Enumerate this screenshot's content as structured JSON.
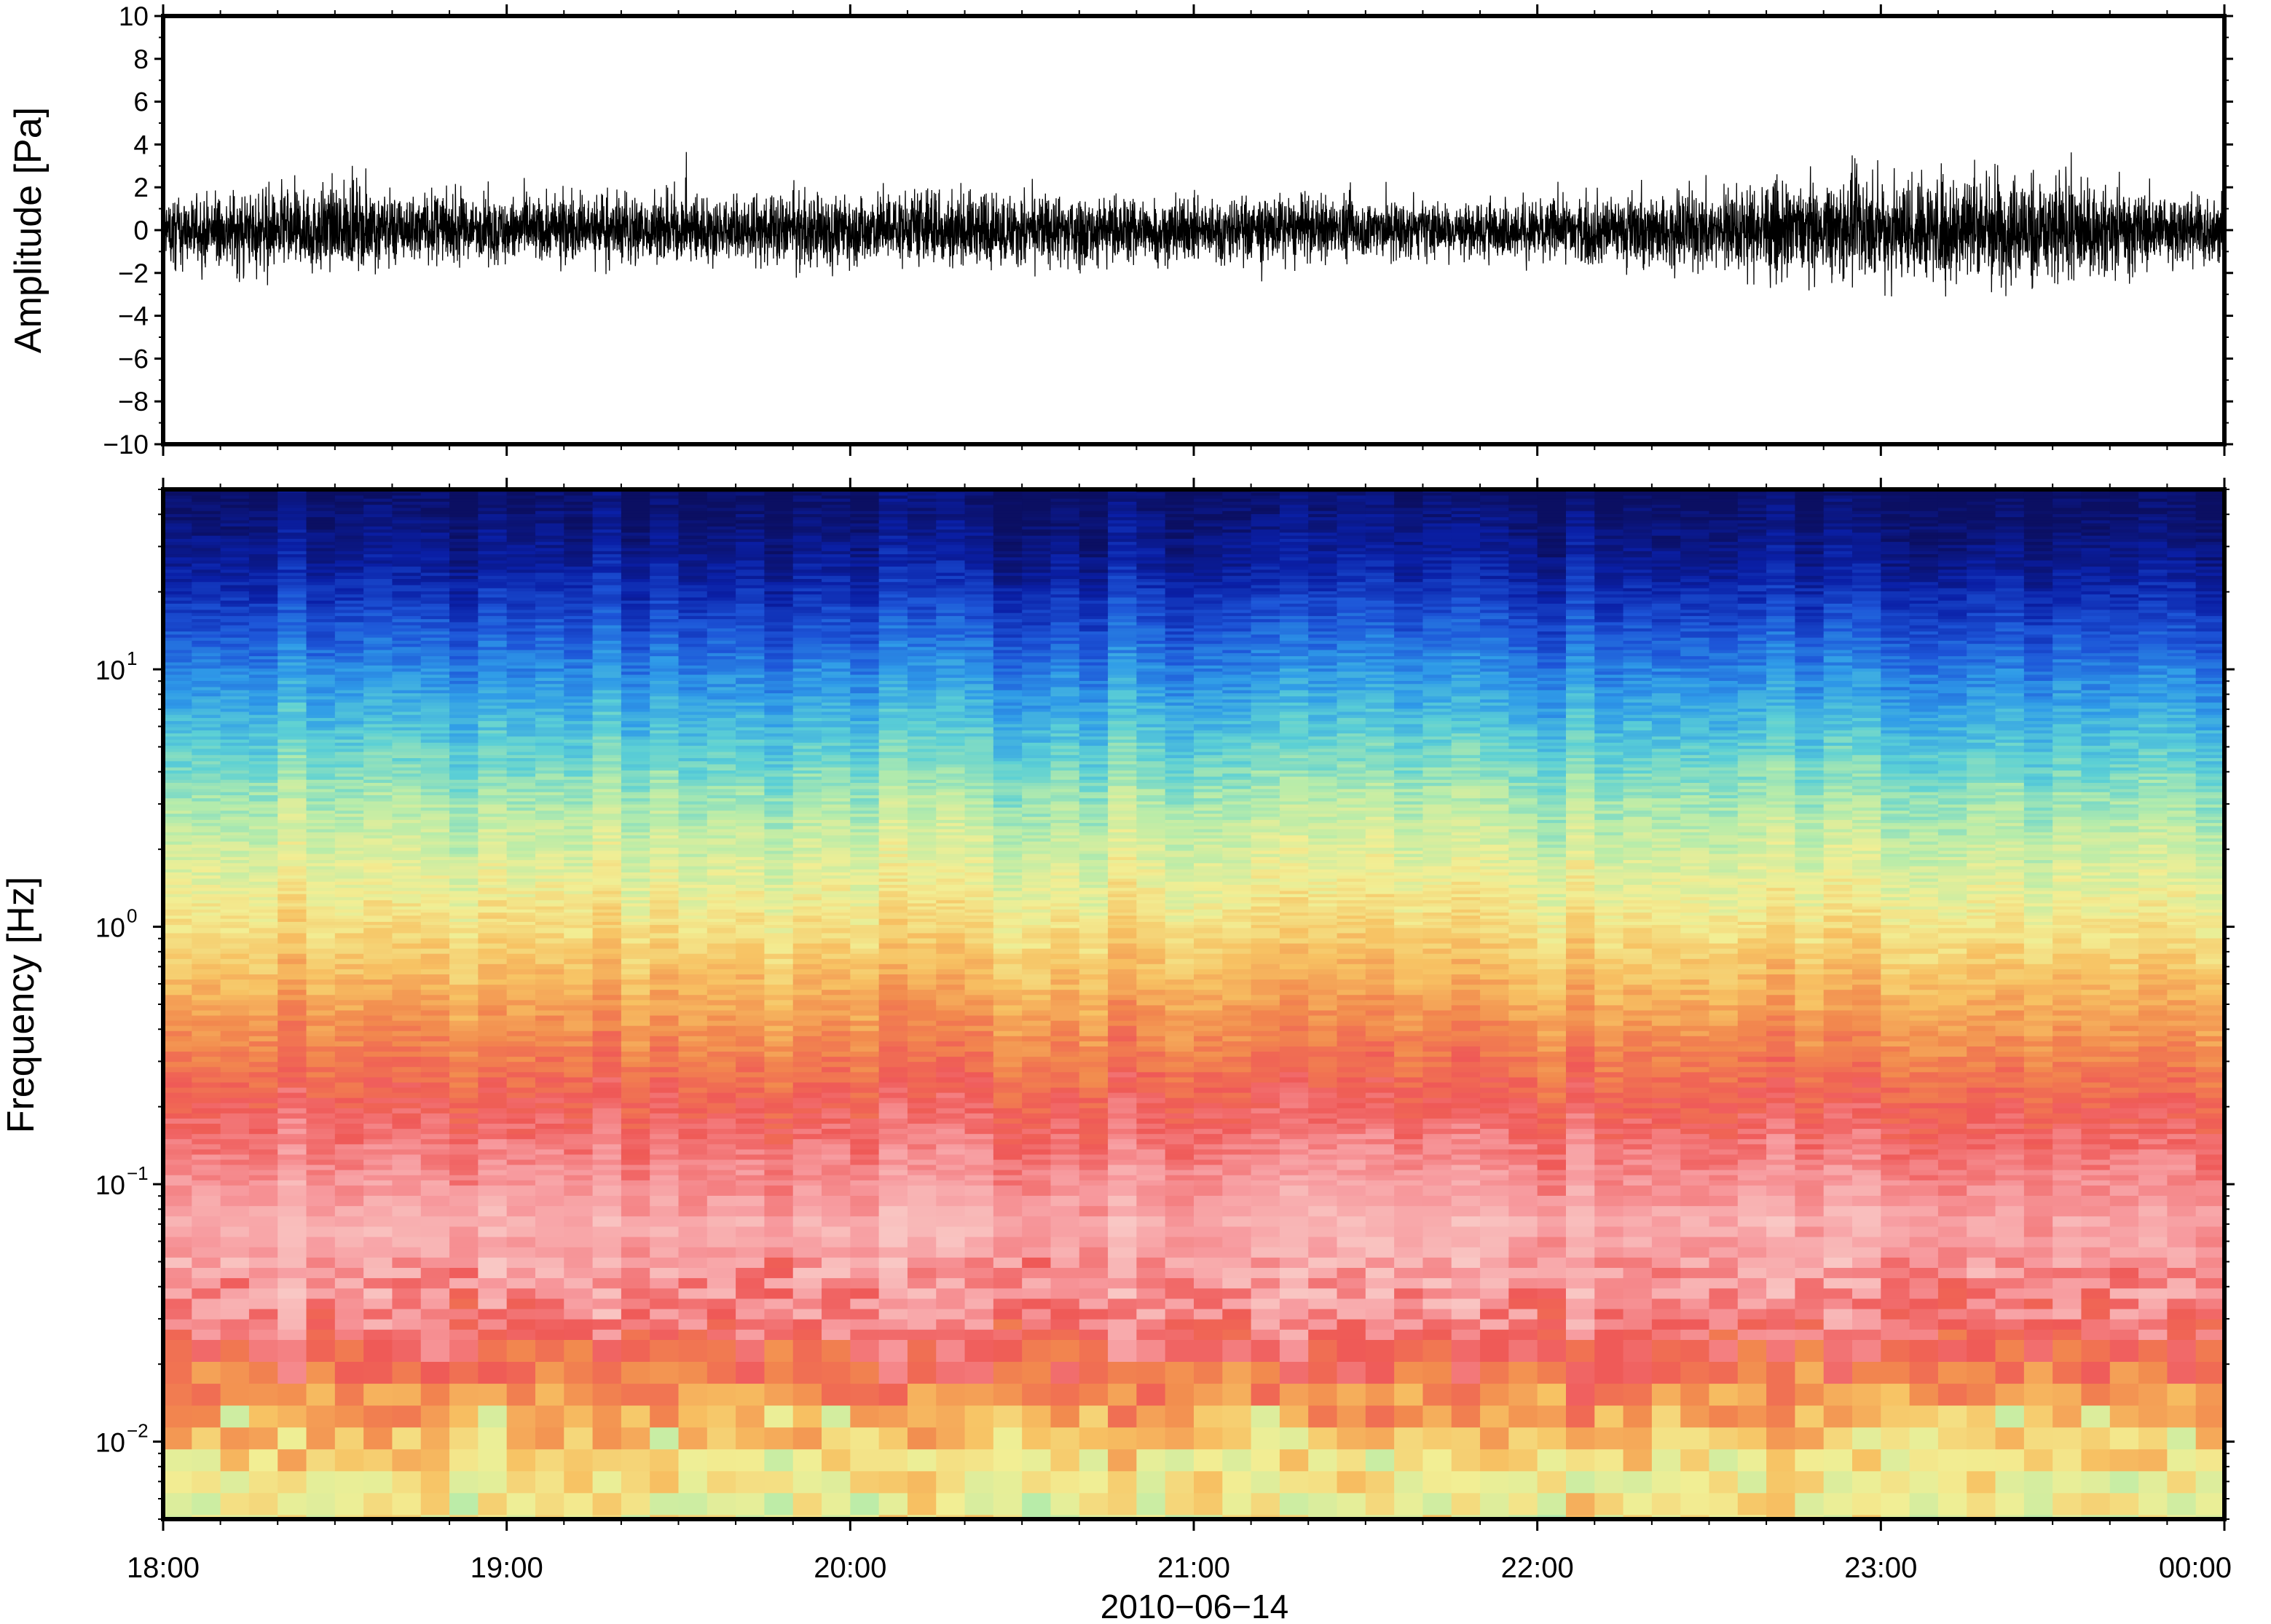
{
  "chart_data": [
    {
      "type": "line",
      "panel": "waveform",
      "ylabel": "Amplitude [Pa]",
      "ylim": [
        -10,
        10
      ],
      "y_ticks": [
        10,
        8,
        6,
        4,
        2,
        0,
        -2,
        -4,
        -6,
        -8,
        -10
      ],
      "y_tick_labels": [
        "10",
        "8",
        "6",
        "4",
        "2",
        "0",
        "−2",
        "−4",
        "−6",
        "−8",
        "−10"
      ],
      "xlim": [
        "2010-06-14 18:00",
        "2010-06-15 00:00"
      ],
      "series": [
        {
          "x": [
            "18:00",
            "18:15",
            "18:30",
            "18:45",
            "19:00",
            "19:15",
            "19:30",
            "19:45",
            "20:00",
            "20:15",
            "20:30",
            "20:45",
            "21:00",
            "21:15",
            "21:30",
            "21:45",
            "22:00",
            "22:15",
            "22:30",
            "22:45",
            "23:00",
            "23:15",
            "23:30",
            "23:45",
            "00:00"
          ],
          "envelope_max": [
            2.6,
            3.2,
            3.8,
            3.4,
            2.6,
            3.3,
            3.2,
            3.0,
            3.1,
            3.4,
            3.0,
            3.0,
            2.8,
            2.9,
            3.0,
            2.4,
            2.6,
            3.0,
            3.4,
            3.6,
            4.8,
            5.3,
            4.5,
            3.2,
            2.8
          ],
          "envelope_min": [
            -3.0,
            -3.4,
            -3.0,
            -2.8,
            -2.5,
            -2.8,
            -2.6,
            -2.9,
            -2.9,
            -3.1,
            -3.2,
            -3.0,
            -2.7,
            -2.8,
            -2.5,
            -2.2,
            -2.4,
            -3.1,
            -3.4,
            -4.0,
            -4.4,
            -3.9,
            -4.5,
            -3.2,
            -2.6
          ]
        }
      ]
    },
    {
      "type": "heatmap",
      "panel": "spectrogram",
      "ylabel": "Frequency [Hz]",
      "yscale": "log",
      "ylim": [
        0.005,
        50
      ],
      "y_ticks": [
        10,
        1,
        0.1,
        0.01
      ],
      "y_tick_labels": [
        {
          "base": "10",
          "exp": "1"
        },
        {
          "base": "10",
          "exp": "0"
        },
        {
          "base": "10",
          "exp": "−1"
        },
        {
          "base": "10",
          "exp": "−2"
        }
      ],
      "xlim": [
        "2010-06-14 18:00",
        "2010-06-15 00:00"
      ],
      "x_ticks": [
        "18:00",
        "19:00",
        "20:00",
        "21:00",
        "22:00",
        "23:00",
        "00:00"
      ],
      "xlabel": "2010−06−14",
      "colormap": [
        "#0b0f62",
        "#0a1fa6",
        "#1d55d8",
        "#2f9be8",
        "#5cd0d5",
        "#b7ecaa",
        "#f2ee94",
        "#f7c263",
        "#f28a4e",
        "#ef5957",
        "#f79a9e",
        "#f9c7c4"
      ],
      "frequency_profile": [
        {
          "freq": 50,
          "level": 0.0
        },
        {
          "freq": 25,
          "level": 0.08
        },
        {
          "freq": 10,
          "level": 0.25
        },
        {
          "freq": 3,
          "level": 0.45
        },
        {
          "freq": 1,
          "level": 0.58
        },
        {
          "freq": 0.4,
          "level": 0.72
        },
        {
          "freq": 0.2,
          "level": 0.82
        },
        {
          "freq": 0.07,
          "level": 0.95
        },
        {
          "freq": 0.03,
          "level": 0.88
        },
        {
          "freq": 0.015,
          "level": 0.72
        },
        {
          "freq": 0.008,
          "level": 0.58
        },
        {
          "freq": 0.005,
          "level": 0.55
        }
      ]
    }
  ]
}
